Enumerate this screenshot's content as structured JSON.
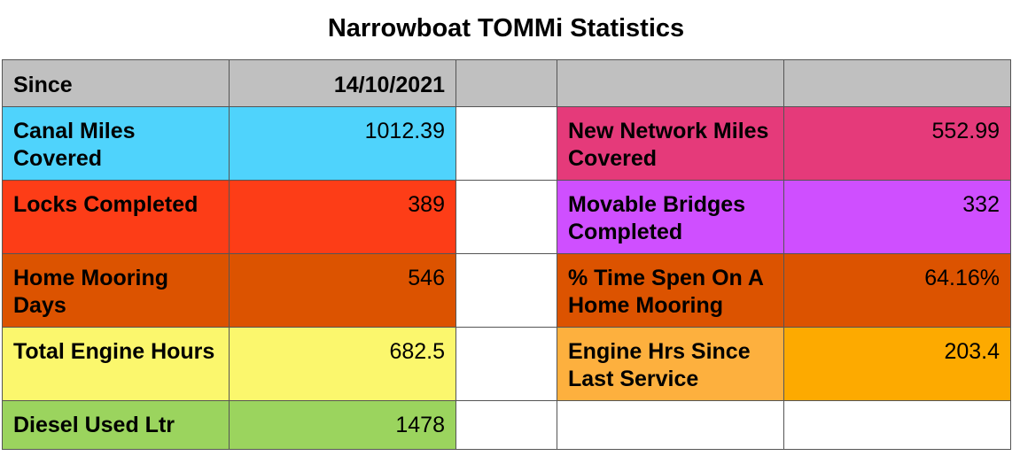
{
  "title": "Narrowboat TOMMi Statistics",
  "header": {
    "label": "Since",
    "value": "14/10/2021",
    "col3": "",
    "col4": "",
    "col5": ""
  },
  "rows": [
    {
      "left_label": "Canal Miles Covered",
      "left_value": "1012.39",
      "right_label": "New Network Miles  Covered",
      "right_value": "552.99",
      "colors": {
        "left_label": "#4fd3fc",
        "left_value": "#4fd3fc",
        "right_label": "#e53a7a",
        "right_value": "#e53a7a"
      }
    },
    {
      "left_label": "Locks Completed",
      "left_value": "389",
      "right_label": "Movable Bridges Completed",
      "right_value": "332",
      "colors": {
        "left_label": "#fd3d17",
        "left_value": "#fd3d17",
        "right_label": "#cf4fff",
        "right_value": "#cf4fff"
      }
    },
    {
      "left_label": "Home Mooring Days",
      "left_value": "546",
      "right_label": " % Time Spen On A Home Mooring",
      "right_value": "64.16%",
      "colors": {
        "left_label": "#dc5300",
        "left_value": "#dc5300",
        "right_label": "#dc5300",
        "right_value": "#dc5300"
      }
    },
    {
      "left_label": "Total Engine Hours",
      "left_value": "682.5",
      "right_label": "Engine Hrs Since Last  Service",
      "right_value": "203.4",
      "colors": {
        "left_label": "#fbf76d",
        "left_value": "#fbf76d",
        "right_label": "#fdb03e",
        "right_value": "#fdaa00"
      }
    },
    {
      "left_label": "Diesel Used Ltr",
      "left_value": "1478",
      "right_label": "",
      "right_value": "",
      "colors": {
        "left_label": "#9bd45e",
        "left_value": "#9bd45e",
        "right_label": "#ffffff",
        "right_value": "#ffffff"
      }
    }
  ],
  "colors": {
    "header_bg": "#c0c0c0",
    "spacer_bg": "#ffffff",
    "border": "#555555"
  }
}
